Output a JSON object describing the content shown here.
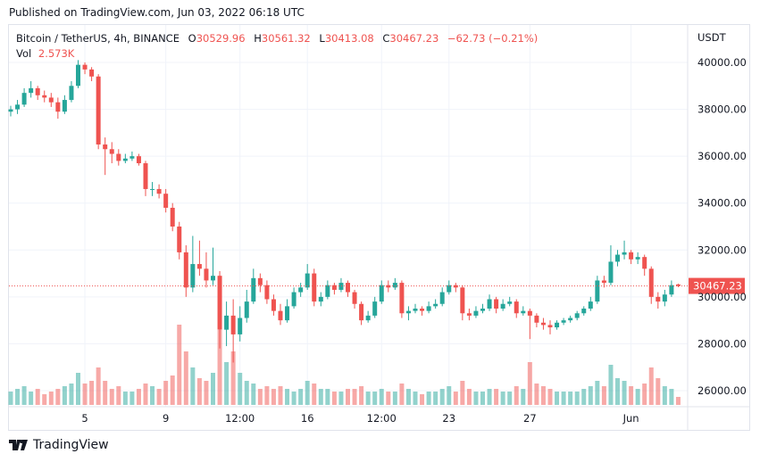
{
  "published": "Published on TradingView.com, Jun 03, 2022 06:18 UTC",
  "brand": "TradingView",
  "legend": {
    "symbol": "Bitcoin / TetherUS, 4h, BINANCE",
    "o_label": "O",
    "o": "30529.96",
    "h_label": "H",
    "h": "30561.32",
    "l_label": "L",
    "l": "30413.08",
    "c_label": "C",
    "c": "30467.23",
    "change": "−62.73 (−0.21%)",
    "vol_label": "Vol",
    "vol": "2.573K"
  },
  "colors": {
    "up": "#26a69a",
    "down": "#ef5350",
    "grid": "#f0f3fa"
  },
  "chart_data": {
    "type": "candlestick",
    "currency_label": "USDT",
    "ylim": [
      25300,
      41200
    ],
    "y_ticks": [
      "40000.00",
      "38000.00",
      "36000.00",
      "34000.00",
      "32000.00",
      "30000.00",
      "28000.00",
      "26000.00"
    ],
    "x_ticks": [
      {
        "label": "5",
        "i": 11
      },
      {
        "label": "9",
        "i": 23
      },
      {
        "label": "12:00",
        "i": 34
      },
      {
        "label": "16",
        "i": 44
      },
      {
        "label": "12:00",
        "i": 55
      },
      {
        "label": "23",
        "i": 65
      },
      {
        "label": "27",
        "i": 77
      },
      {
        "label": "Jun",
        "i": 92
      }
    ],
    "last_price": "30467.23",
    "candles": [
      [
        37900,
        38150,
        37700,
        38000,
        5
      ],
      [
        38000,
        38400,
        37800,
        38200,
        6
      ],
      [
        38200,
        38900,
        38100,
        38700,
        7
      ],
      [
        38700,
        39200,
        38500,
        38900,
        5
      ],
      [
        38900,
        39000,
        38400,
        38600,
        6
      ],
      [
        38600,
        38800,
        38300,
        38500,
        4
      ],
      [
        38500,
        38700,
        38100,
        38300,
        5
      ],
      [
        38300,
        38500,
        37600,
        37900,
        6
      ],
      [
        37900,
        38600,
        37800,
        38400,
        7
      ],
      [
        38400,
        39200,
        38300,
        39000,
        8
      ],
      [
        39000,
        40100,
        38900,
        39900,
        12
      ],
      [
        39900,
        40000,
        39500,
        39700,
        8
      ],
      [
        39700,
        39800,
        39200,
        39400,
        9
      ],
      [
        39400,
        39500,
        36300,
        36500,
        14
      ],
      [
        36500,
        36800,
        35200,
        36300,
        9
      ],
      [
        36300,
        36600,
        35700,
        36100,
        6
      ],
      [
        36100,
        36300,
        35600,
        35800,
        7
      ],
      [
        35800,
        36100,
        35700,
        35900,
        5
      ],
      [
        35900,
        36200,
        35800,
        36000,
        5
      ],
      [
        36000,
        36100,
        35600,
        35700,
        6
      ],
      [
        35700,
        35800,
        34300,
        34600,
        8
      ],
      [
        34600,
        34900,
        34300,
        34600,
        7
      ],
      [
        34600,
        34800,
        34200,
        34400,
        6
      ],
      [
        34400,
        34600,
        33600,
        33800,
        9
      ],
      [
        33800,
        34000,
        32800,
        33000,
        11
      ],
      [
        33000,
        33200,
        31600,
        31900,
        30
      ],
      [
        31900,
        32200,
        30000,
        30400,
        20
      ],
      [
        30400,
        32600,
        30200,
        31400,
        14
      ],
      [
        31400,
        32400,
        30900,
        31200,
        10
      ],
      [
        31200,
        31900,
        30400,
        30700,
        9
      ],
      [
        30700,
        32100,
        30500,
        30900,
        12
      ],
      [
        30900,
        31100,
        27800,
        28600,
        28
      ],
      [
        28600,
        29800,
        27900,
        29200,
        16
      ],
      [
        29200,
        29900,
        27200,
        28400,
        20
      ],
      [
        28400,
        29600,
        28100,
        29100,
        12
      ],
      [
        29100,
        30300,
        28900,
        29800,
        9
      ],
      [
        29800,
        31200,
        29700,
        30800,
        8
      ],
      [
        30800,
        31000,
        30200,
        30500,
        6
      ],
      [
        30500,
        30700,
        29700,
        29900,
        7
      ],
      [
        29900,
        30100,
        29200,
        29400,
        6
      ],
      [
        29400,
        29700,
        28800,
        29000,
        7
      ],
      [
        29000,
        29900,
        28900,
        29600,
        6
      ],
      [
        29600,
        30400,
        29500,
        30200,
        5
      ],
      [
        30200,
        30600,
        30000,
        30400,
        6
      ],
      [
        30400,
        31400,
        30300,
        31000,
        9
      ],
      [
        31000,
        31200,
        29600,
        29800,
        8
      ],
      [
        29800,
        30200,
        29600,
        30000,
        6
      ],
      [
        30000,
        30700,
        29900,
        30500,
        6
      ],
      [
        30500,
        30600,
        30100,
        30300,
        5
      ],
      [
        30300,
        30800,
        30200,
        30600,
        5
      ],
      [
        30600,
        30700,
        30000,
        30200,
        6
      ],
      [
        30200,
        30300,
        29500,
        29700,
        6
      ],
      [
        29700,
        29800,
        28800,
        29000,
        7
      ],
      [
        29000,
        29400,
        28900,
        29200,
        5
      ],
      [
        29200,
        30000,
        29100,
        29800,
        5
      ],
      [
        29800,
        30700,
        29700,
        30500,
        6
      ],
      [
        30500,
        30700,
        30200,
        30400,
        5
      ],
      [
        30400,
        30800,
        30300,
        30600,
        5
      ],
      [
        30600,
        30700,
        29100,
        29300,
        8
      ],
      [
        29300,
        29600,
        29000,
        29400,
        6
      ],
      [
        29400,
        29700,
        29300,
        29500,
        5
      ],
      [
        29500,
        29600,
        29200,
        29400,
        4
      ],
      [
        29400,
        29800,
        29300,
        29600,
        5
      ],
      [
        29600,
        29900,
        29500,
        29700,
        5
      ],
      [
        29700,
        30400,
        29600,
        30200,
        6
      ],
      [
        30200,
        30700,
        30100,
        30500,
        7
      ],
      [
        30500,
        30600,
        30200,
        30400,
        5
      ],
      [
        30400,
        30500,
        29000,
        29300,
        9
      ],
      [
        29300,
        29500,
        29000,
        29200,
        6
      ],
      [
        29200,
        29600,
        29100,
        29400,
        5
      ],
      [
        29400,
        29700,
        29300,
        29500,
        5
      ],
      [
        29500,
        30100,
        29400,
        29900,
        6
      ],
      [
        29900,
        30000,
        29300,
        29500,
        6
      ],
      [
        29500,
        29900,
        29400,
        29700,
        5
      ],
      [
        29700,
        30000,
        29600,
        29800,
        5
      ],
      [
        29800,
        29900,
        29100,
        29300,
        7
      ],
      [
        29300,
        29600,
        29200,
        29400,
        6
      ],
      [
        29400,
        29500,
        28200,
        29200,
        16
      ],
      [
        29200,
        29300,
        28700,
        28900,
        8
      ],
      [
        28900,
        29100,
        28600,
        28800,
        7
      ],
      [
        28800,
        29000,
        28400,
        28700,
        6
      ],
      [
        28700,
        29000,
        28600,
        28900,
        5
      ],
      [
        28900,
        29100,
        28800,
        29000,
        5
      ],
      [
        29000,
        29200,
        28900,
        29100,
        5
      ],
      [
        29100,
        29400,
        29000,
        29300,
        5
      ],
      [
        29300,
        29600,
        29200,
        29500,
        6
      ],
      [
        29500,
        30000,
        29400,
        29800,
        7
      ],
      [
        29800,
        30900,
        29700,
        30700,
        9
      ],
      [
        30700,
        30900,
        30400,
        30600,
        7
      ],
      [
        30600,
        32200,
        30500,
        31500,
        15
      ],
      [
        31500,
        32000,
        31300,
        31800,
        10
      ],
      [
        31800,
        32400,
        31600,
        31900,
        9
      ],
      [
        31900,
        32000,
        31400,
        31600,
        7
      ],
      [
        31600,
        31900,
        31400,
        31700,
        6
      ],
      [
        31700,
        31800,
        30900,
        31200,
        8
      ],
      [
        31200,
        31300,
        29700,
        30000,
        14
      ],
      [
        30000,
        30200,
        29500,
        29800,
        10
      ],
      [
        29800,
        30300,
        29600,
        30100,
        7
      ],
      [
        30100,
        30700,
        30000,
        30500,
        6
      ],
      [
        30529.96,
        30561.32,
        30413.08,
        30467.23,
        3
      ]
    ]
  }
}
